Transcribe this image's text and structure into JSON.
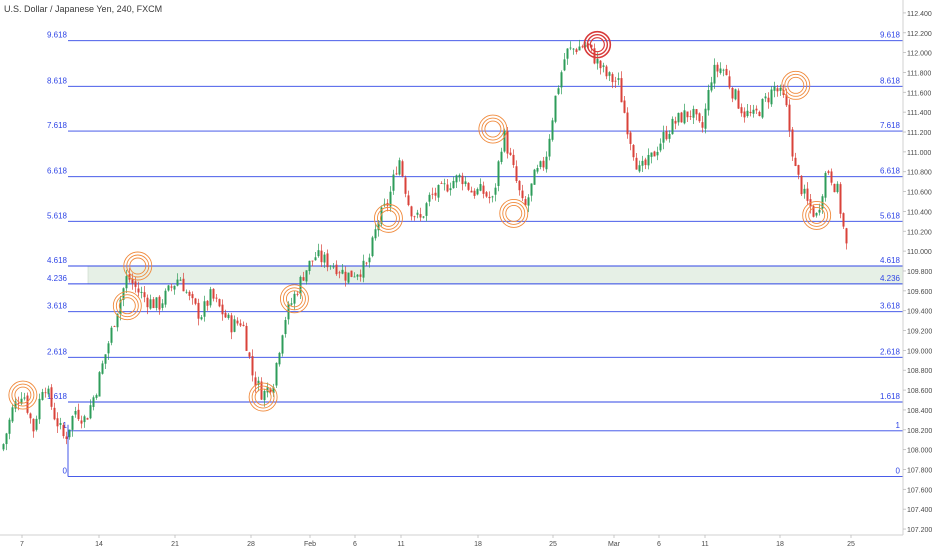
{
  "header": {
    "title": "U.S. Dollar / Japanese Yen, 240, FXCM"
  },
  "colors": {
    "fib_line": "#2f45e6",
    "fib_label": "#2f45e6",
    "up_candle": "#2e9c5a",
    "down_candle": "#d9423a",
    "zone_fill": "#e6f0e6",
    "circle": "#f08a3c",
    "top_circle": "#d83a3a",
    "axis_text": "#4a4a4a"
  },
  "chart_data": {
    "type": "candlestick",
    "title": "U.S. Dollar / Japanese Yen, 240, FXCM",
    "ylim": [
      107.14,
      112.53
    ],
    "y_ticks": [
      "107.200",
      "107.400",
      "107.600",
      "107.800",
      "108.000",
      "108.200",
      "108.400",
      "108.600",
      "108.800",
      "109.000",
      "109.200",
      "109.400",
      "109.600",
      "109.800",
      "110.000",
      "110.200",
      "110.400",
      "110.600",
      "110.800",
      "111.000",
      "111.200",
      "111.400",
      "111.600",
      "111.800",
      "112.000",
      "112.200",
      "112.400"
    ],
    "x_ticks": [
      "7",
      "14",
      "21",
      "28",
      "Feb",
      "6",
      "11",
      "18",
      "25",
      "Mar",
      "6",
      "11",
      "18",
      "25"
    ],
    "fib_levels": [
      {
        "label": "0",
        "price": 107.73
      },
      {
        "label": "1",
        "price": 108.19
      },
      {
        "label": "1.618",
        "price": 108.48
      },
      {
        "label": "2.618",
        "price": 108.93
      },
      {
        "label": "3.618",
        "price": 109.39
      },
      {
        "label": "4.236",
        "price": 109.67
      },
      {
        "label": "4.618",
        "price": 109.85
      },
      {
        "label": "5.618",
        "price": 110.3
      },
      {
        "label": "6.618",
        "price": 110.75
      },
      {
        "label": "7.618",
        "price": 111.21
      },
      {
        "label": "8.618",
        "price": 111.66
      },
      {
        "label": "9.618",
        "price": 112.12
      }
    ],
    "zone": {
      "from": 109.67,
      "to": 109.85
    },
    "price_path": [
      108.0,
      108.4,
      108.6,
      108.2,
      108.7,
      108.35,
      108.1,
      108.4,
      108.3,
      108.6,
      109.0,
      109.4,
      109.75,
      109.6,
      109.5,
      109.45,
      109.6,
      109.75,
      109.5,
      109.35,
      109.55,
      109.4,
      109.25,
      109.3,
      108.75,
      108.55,
      108.7,
      109.3,
      109.55,
      109.8,
      109.95,
      109.9,
      109.85,
      109.75,
      109.8,
      109.85,
      110.3,
      110.5,
      110.95,
      110.45,
      110.3,
      110.55,
      110.6,
      110.7,
      110.75,
      110.6,
      110.6,
      110.5,
      111.2,
      110.8,
      110.4,
      110.75,
      110.9,
      111.55,
      112.0,
      112.05,
      112.08,
      111.9,
      111.75,
      111.7,
      111.2,
      110.8,
      110.9,
      111.1,
      111.25,
      111.35,
      111.4,
      111.2,
      111.8,
      111.85,
      111.6,
      111.4,
      111.35,
      111.5,
      111.65,
      111.5,
      110.8,
      110.5,
      110.35,
      110.85,
      110.6,
      109.95
    ],
    "markers": [
      {
        "i": 2,
        "p": 108.55
      },
      {
        "i": 12,
        "p": 109.45
      },
      {
        "i": 13,
        "p": 109.85
      },
      {
        "i": 25,
        "p": 108.53
      },
      {
        "i": 28,
        "p": 109.52
      },
      {
        "i": 37,
        "p": 110.33
      },
      {
        "i": 47,
        "p": 111.23
      },
      {
        "i": 49,
        "p": 110.38
      },
      {
        "i": 57,
        "p": 112.08,
        "top": true
      },
      {
        "i": 76,
        "p": 111.67
      },
      {
        "i": 78,
        "p": 110.36
      }
    ]
  }
}
